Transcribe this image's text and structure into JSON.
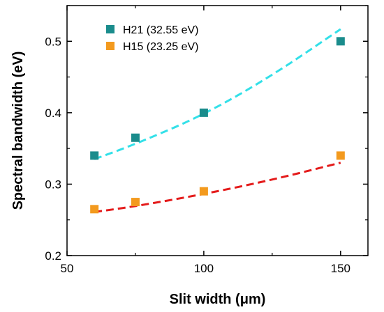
{
  "chart_data": {
    "type": "scatter",
    "xlabel": "Slit width (μm)",
    "ylabel": "Spectral bandwidth (eV)",
    "xlim": [
      50,
      160
    ],
    "ylim": [
      0.2,
      0.55
    ],
    "xticks": [
      50,
      100,
      150
    ],
    "xtick_labels": [
      "50",
      "100",
      "150"
    ],
    "yticks": [
      0.2,
      0.3,
      0.4,
      0.5
    ],
    "ytick_labels": [
      "0.2",
      "0.3",
      "0.4",
      "0.5"
    ],
    "grid": false,
    "legend_position": "top-left",
    "series": [
      {
        "name": "H21 (32.55 eV)",
        "color": "#1a8c8c",
        "fit_color": "#33e0e8",
        "points": [
          [
            60,
            0.34
          ],
          [
            75,
            0.365
          ],
          [
            100,
            0.4
          ],
          [
            150,
            0.5
          ]
        ],
        "fit": [
          [
            60,
            0.335
          ],
          [
            75,
            0.356
          ],
          [
            100,
            0.397
          ],
          [
            125,
            0.452
          ],
          [
            150,
            0.517
          ]
        ]
      },
      {
        "name": "H15 (23.25 eV)",
        "color": "#f39a1e",
        "fit_color": "#e41b1b",
        "points": [
          [
            60,
            0.265
          ],
          [
            75,
            0.275
          ],
          [
            100,
            0.29
          ],
          [
            150,
            0.34
          ]
        ],
        "fit": [
          [
            60,
            0.261
          ],
          [
            75,
            0.269
          ],
          [
            100,
            0.286
          ],
          [
            125,
            0.306
          ],
          [
            150,
            0.33
          ]
        ]
      }
    ]
  }
}
